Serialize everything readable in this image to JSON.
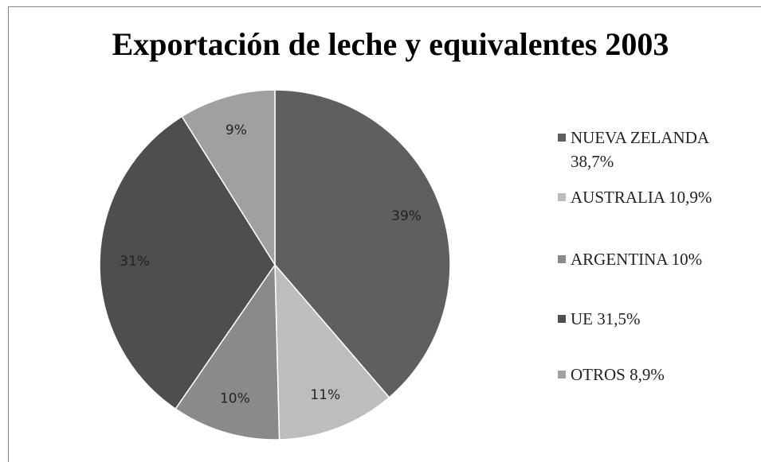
{
  "chart_data": {
    "type": "pie",
    "title": "Exportación de leche y equivalentes 2003",
    "categories": [
      "NUEVA ZELANDA 38,7%",
      "AUSTRALIA 10,9%",
      "ARGENTINA 10%",
      "UE 31,5%",
      "OTROS 8,9%"
    ],
    "values": [
      38.7,
      10.9,
      10,
      31.5,
      8.9
    ],
    "value_labels": [
      "39%",
      "11%",
      "10%",
      "31%",
      "9%"
    ],
    "colors": [
      "#5f5f5f",
      "#bdbdbd",
      "#8a8a8a",
      "#4e4e4e",
      "#a0a0a0"
    ],
    "legend": "right"
  }
}
